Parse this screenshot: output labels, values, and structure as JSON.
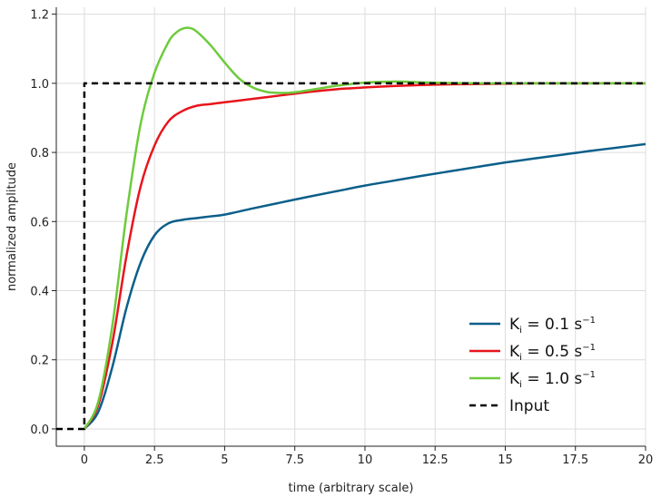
{
  "chart_data": {
    "type": "line",
    "title": "",
    "xlabel": "time (arbitrary scale)",
    "ylabel": "normalized amplitude",
    "xlim": [
      -1,
      20
    ],
    "ylim": [
      -0.05,
      1.22
    ],
    "xticks": [
      0,
      2.5,
      5,
      7.5,
      10,
      12.5,
      15,
      17.5,
      20
    ],
    "xtick_labels": [
      "0",
      "2.5",
      "5",
      "7.5",
      "10",
      "12.5",
      "15",
      "17.5",
      "20"
    ],
    "yticks": [
      0,
      0.2,
      0.4,
      0.6,
      0.8,
      1.0,
      1.2
    ],
    "ytick_labels": [
      "0.0",
      "0.2",
      "0.4",
      "0.6",
      "0.8",
      "1.0",
      "1.2"
    ],
    "grid": true,
    "legend_position": "bottom-right",
    "series": [
      {
        "name": "Ki = 0.1 s-1",
        "legend": {
          "main": "K",
          "sub": "i",
          "eq": " = 0.1 s",
          "sup": "−1"
        },
        "color": "#0b5f8a",
        "dash": "solid",
        "x": [
          0,
          0.5,
          1,
          1.5,
          2,
          2.5,
          3,
          3.5,
          4,
          4.5,
          5,
          6,
          7,
          8,
          9,
          10,
          11,
          12,
          13,
          14,
          15,
          16,
          17,
          18,
          19,
          20
        ],
        "y": [
          0,
          0.05,
          0.18,
          0.35,
          0.48,
          0.56,
          0.595,
          0.605,
          0.61,
          0.615,
          0.62,
          0.638,
          0.655,
          0.672,
          0.688,
          0.704,
          0.718,
          0.732,
          0.745,
          0.758,
          0.771,
          0.782,
          0.793,
          0.804,
          0.814,
          0.824
        ]
      },
      {
        "name": "Ki = 0.5 s-1",
        "legend": {
          "main": "K",
          "sub": "i",
          "eq": " = 0.5 s",
          "sup": "−1"
        },
        "color": "#e8141b",
        "dash": "solid",
        "x": [
          0,
          0.5,
          1,
          1.5,
          2,
          2.5,
          3,
          3.5,
          4,
          4.5,
          5,
          6,
          7,
          8,
          9,
          10,
          11,
          12,
          13,
          14,
          15,
          16,
          17,
          18,
          19,
          20
        ],
        "y": [
          0,
          0.07,
          0.25,
          0.5,
          0.7,
          0.82,
          0.89,
          0.92,
          0.935,
          0.94,
          0.945,
          0.955,
          0.965,
          0.975,
          0.983,
          0.988,
          0.992,
          0.995,
          0.997,
          0.998,
          0.999,
          1.0,
          1.0,
          1.0,
          1.0,
          1.0
        ]
      },
      {
        "name": "Ki = 1.0 s-1",
        "legend": {
          "main": "K",
          "sub": "i",
          "eq": " = 1.0 s",
          "sup": "−1"
        },
        "color": "#6dcb3c",
        "dash": "solid",
        "x": [
          0,
          0.5,
          1,
          1.5,
          2,
          2.5,
          3,
          3.25,
          3.5,
          3.75,
          4,
          4.5,
          5,
          5.5,
          6,
          6.5,
          7,
          7.5,
          8,
          9,
          10,
          11,
          12,
          13,
          14,
          16,
          18,
          20
        ],
        "y": [
          0,
          0.08,
          0.3,
          0.62,
          0.88,
          1.03,
          1.12,
          1.145,
          1.158,
          1.16,
          1.15,
          1.11,
          1.06,
          1.015,
          0.988,
          0.975,
          0.972,
          0.974,
          0.98,
          0.993,
          1.002,
          1.005,
          1.003,
          1.001,
          1.0,
          1.0,
          1.0,
          1.0
        ]
      },
      {
        "name": "Input",
        "legend": {
          "main": "Input",
          "sub": "",
          "eq": "",
          "sup": ""
        },
        "color": "#000000",
        "dash": "dashed",
        "x": [
          -1,
          0,
          0,
          20
        ],
        "y": [
          0,
          0,
          1,
          1
        ]
      }
    ]
  }
}
